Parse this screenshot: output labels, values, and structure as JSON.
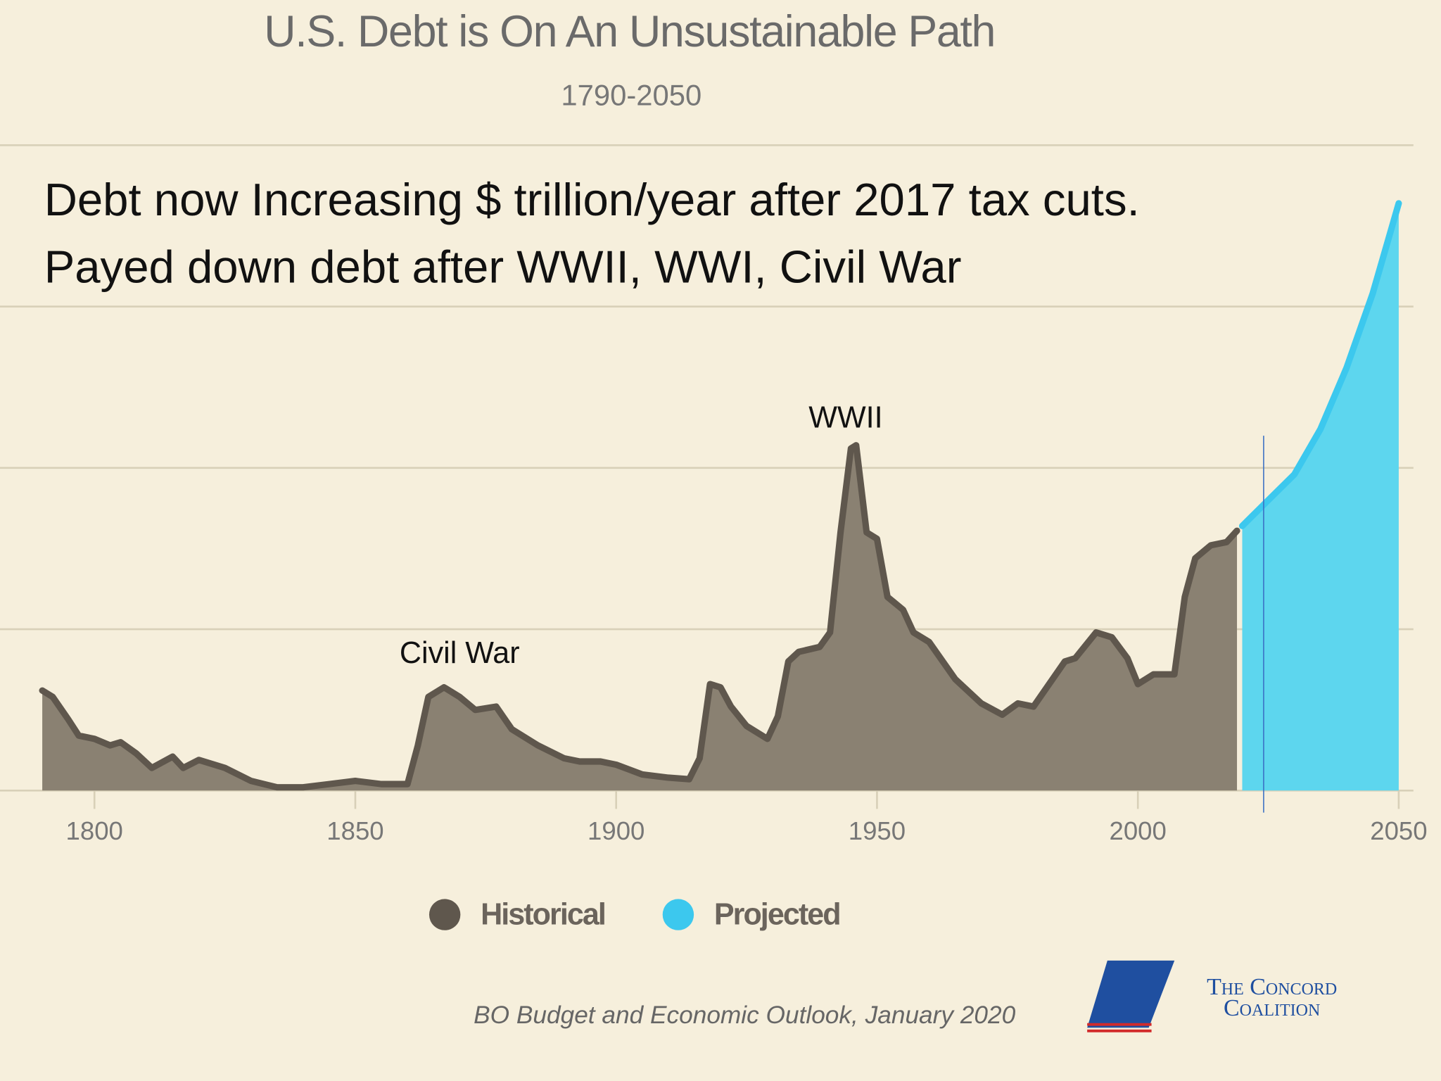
{
  "chart_data": {
    "type": "area",
    "title": "U.S. Debt is On An Unsustainable Path",
    "subtitle": "1790-2050",
    "annotations": [
      {
        "text": "Civil War",
        "x": 1870,
        "y": 42
      },
      {
        "text": "WWII",
        "x": 1944,
        "y": 115
      }
    ],
    "headline": [
      "Debt now Increasing $ trillion/year after 2017 tax cuts.",
      "Payed down debt after WWII, WWI, Civil War"
    ],
    "source": "BO Budget and Economic Outlook, January 2020",
    "logo": [
      "The Concord",
      "Coalition"
    ],
    "xlim": [
      1790,
      2050
    ],
    "xticks": [
      1800,
      1850,
      1900,
      1950,
      2000,
      2050
    ],
    "ylim": [
      0,
      200
    ],
    "yticks": [
      0,
      50,
      100,
      150,
      200
    ],
    "show_ytick_labels": false,
    "grid": true,
    "legend": "bottom",
    "series": [
      {
        "name": "Historical",
        "color": "#8a8172",
        "line_color": "#5f574d",
        "x": [
          1790,
          1792,
          1795,
          1797,
          1800,
          1803,
          1805,
          1808,
          1811,
          1815,
          1817,
          1820,
          1825,
          1830,
          1835,
          1840,
          1845,
          1850,
          1855,
          1860,
          1862,
          1864,
          1867,
          1870,
          1873,
          1877,
          1880,
          1885,
          1890,
          1893,
          1897,
          1900,
          1905,
          1910,
          1914,
          1916,
          1918,
          1920,
          1922,
          1925,
          1929,
          1931,
          1933,
          1935,
          1939,
          1941,
          1943,
          1945,
          1946,
          1948,
          1950,
          1952,
          1955,
          1957,
          1960,
          1965,
          1970,
          1974,
          1977,
          1980,
          1983,
          1986,
          1988,
          1992,
          1995,
          1998,
          2000,
          2003,
          2007,
          2009,
          2011,
          2014,
          2017,
          2019
        ],
        "values": [
          31,
          29,
          22,
          17,
          16,
          14,
          15,
          11.5,
          7,
          10.5,
          7,
          9.5,
          7,
          3,
          1,
          1,
          2,
          3,
          2,
          2,
          14,
          29,
          32,
          29,
          25,
          26,
          19,
          14,
          10,
          9,
          9,
          8,
          5,
          4,
          3.5,
          10,
          33,
          32,
          26,
          20,
          16,
          23,
          40,
          43,
          44.5,
          49,
          80,
          106,
          107,
          80,
          78,
          60,
          56,
          49,
          46,
          34.5,
          27,
          23.5,
          27,
          26,
          33,
          40,
          41,
          49,
          47.5,
          41,
          33,
          36,
          36,
          60,
          72,
          76,
          77,
          80.5
        ]
      },
      {
        "name": "Projected",
        "color": "#5dd6ee",
        "line_color": "#3cc8ee",
        "x": [
          2020,
          2025,
          2030,
          2035,
          2040,
          2045,
          2050
        ],
        "values": [
          82,
          90,
          98,
          112,
          131,
          154,
          182
        ]
      }
    ]
  }
}
